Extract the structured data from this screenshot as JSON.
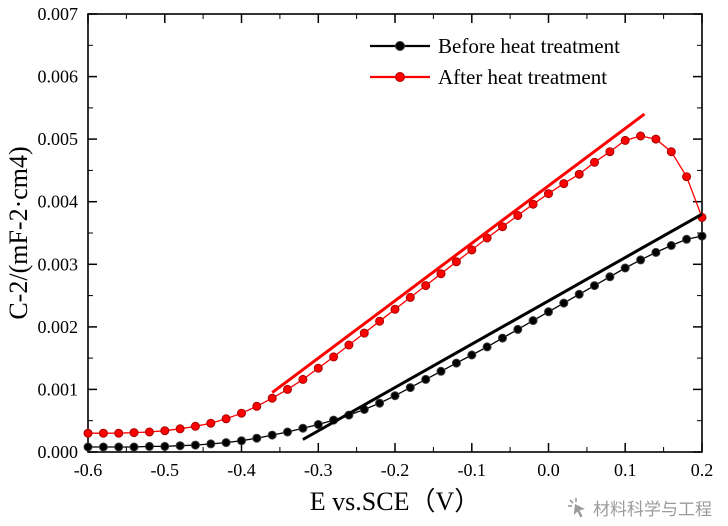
{
  "chart_data": {
    "type": "scatter",
    "title": "",
    "xlabel": "E vs.SCE（V）",
    "ylabel": "C-2/(mF-2·cm4)",
    "xlim": [
      -0.6,
      0.2
    ],
    "ylim": [
      0,
      0.007
    ],
    "x_ticks": [
      -0.6,
      -0.5,
      -0.4,
      -0.3,
      -0.2,
      -0.1,
      0.0,
      0.1,
      0.2
    ],
    "x_tick_labels": [
      "-0.6",
      "-0.5",
      "-0.4",
      "-0.3",
      "-0.2",
      "-0.1",
      "0.0",
      "0.1",
      "0.2"
    ],
    "y_ticks": [
      0,
      0.001,
      0.002,
      0.003,
      0.004,
      0.005,
      0.006,
      0.007
    ],
    "y_tick_labels": [
      "0.000",
      "0.001",
      "0.002",
      "0.003",
      "0.004",
      "0.005",
      "0.006",
      "0.007"
    ],
    "x_minor_step": 0.05,
    "y_minor_step": 0.0005,
    "grid": false,
    "legend_position": "top-right-inside",
    "x": [
      -0.6,
      -0.58,
      -0.56,
      -0.54,
      -0.52,
      -0.5,
      -0.48,
      -0.46,
      -0.44,
      -0.42,
      -0.4,
      -0.38,
      -0.36,
      -0.34,
      -0.32,
      -0.3,
      -0.28,
      -0.26,
      -0.24,
      -0.22,
      -0.2,
      -0.18,
      -0.16,
      -0.14,
      -0.12,
      -0.1,
      -0.08,
      -0.06,
      -0.04,
      -0.02,
      0,
      0.02,
      0.04,
      0.06,
      0.08,
      0.1,
      0.12,
      0.14,
      0.16,
      0.18,
      0.2
    ],
    "series": [
      {
        "name": "Before heat treatment",
        "color": "#000000",
        "marker_edge": "#3a3a3a",
        "y": [
          8e-05,
          8e-05,
          8e-05,
          8e-05,
          9e-05,
          9e-05,
          0.0001,
          0.00011,
          0.00013,
          0.00015,
          0.00018,
          0.00022,
          0.00027,
          0.00032,
          0.00038,
          0.00044,
          0.00051,
          0.00059,
          0.00068,
          0.00078,
          0.0009,
          0.00103,
          0.00116,
          0.00129,
          0.00142,
          0.00155,
          0.00168,
          0.00182,
          0.00196,
          0.0021,
          0.00224,
          0.00238,
          0.00252,
          0.00266,
          0.0028,
          0.00294,
          0.00307,
          0.00319,
          0.0033,
          0.0034,
          0.00345
        ]
      },
      {
        "name": "After heat treatment",
        "color": "#ff0000",
        "marker_edge": "#a80000",
        "y": [
          0.0003,
          0.0003,
          0.0003,
          0.00031,
          0.00032,
          0.00034,
          0.00037,
          0.00041,
          0.00046,
          0.00053,
          0.00062,
          0.00073,
          0.00086,
          0.001,
          0.00116,
          0.00134,
          0.00152,
          0.00171,
          0.0019,
          0.00209,
          0.00228,
          0.00247,
          0.00266,
          0.00285,
          0.00304,
          0.00323,
          0.00342,
          0.0036,
          0.00378,
          0.00396,
          0.00413,
          0.00429,
          0.00444,
          0.00463,
          0.0048,
          0.00498,
          0.00505,
          0.005,
          0.0048,
          0.0044,
          0.00375
        ]
      }
    ],
    "fit_lines": [
      {
        "series": "Before heat treatment",
        "color": "#000000",
        "x1": -0.32,
        "y1": 0.0002,
        "x2": 0.2,
        "y2": 0.0038
      },
      {
        "series": "After heat treatment",
        "color": "#ff0000",
        "x1": -0.36,
        "y1": 0.00095,
        "x2": 0.125,
        "y2": 0.0054
      }
    ]
  },
  "watermark": {
    "text": "材料科学与工程",
    "icon": "cursor-click-icon",
    "color": "#9b9b9b"
  }
}
